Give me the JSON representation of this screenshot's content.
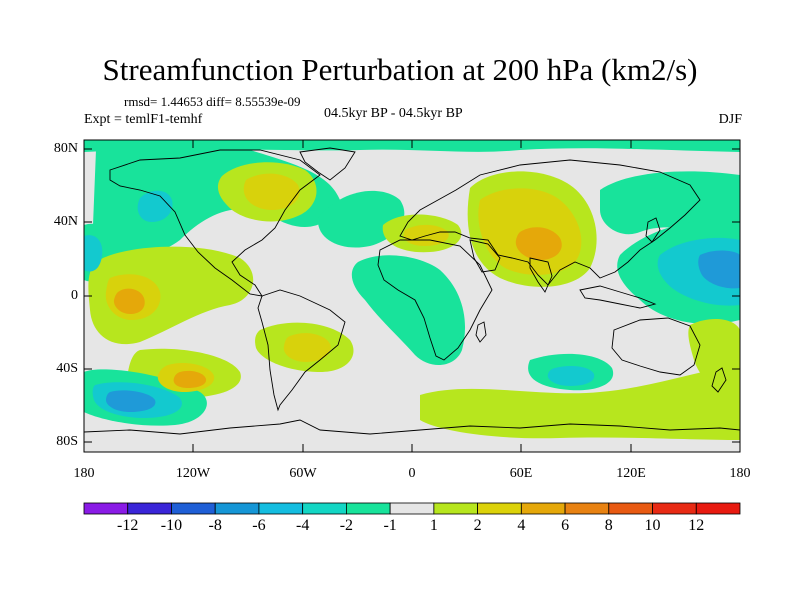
{
  "title": "Streamfunction Perturbation at 200 hPa (km2/s)",
  "stats": "rmsd= 1.44653  diff= 8.55539e-09",
  "experiment": "Expt = temlF1-temhf",
  "period": "04.5kyr BP - 04.5kyr BP",
  "season": "DJF",
  "map": {
    "lon_range": [
      -180,
      180
    ],
    "lat_range": [
      -90,
      90
    ],
    "y_ticks": [
      "80N",
      "40N",
      "0",
      "40S",
      "80S"
    ],
    "x_ticks": [
      "180",
      "120W",
      "60W",
      "0",
      "60E",
      "120E",
      "180"
    ]
  },
  "colorbar": {
    "labels": [
      "-12",
      "-10",
      "-8",
      "-6",
      "-4",
      "-2",
      "-1",
      "1",
      "2",
      "4",
      "6",
      "8",
      "10",
      "12"
    ],
    "colors": [
      "#8a1be6",
      "#3a25d8",
      "#1f5fd6",
      "#1596d6",
      "#14bde0",
      "#13d6c4",
      "#18e39b",
      "#e6e6e6",
      "#b7e61e",
      "#dcd20a",
      "#e5a80a",
      "#e88212",
      "#e85a12",
      "#e82a14",
      "#e81a10"
    ]
  },
  "palette": {
    "background": "#e6e6e6",
    "pos1": "#b7e61e",
    "pos2": "#d8d20c",
    "pos3": "#e5a80a",
    "neg1": "#18e39b",
    "neg2": "#13c9cf",
    "neg3": "#1f9ad8"
  }
}
